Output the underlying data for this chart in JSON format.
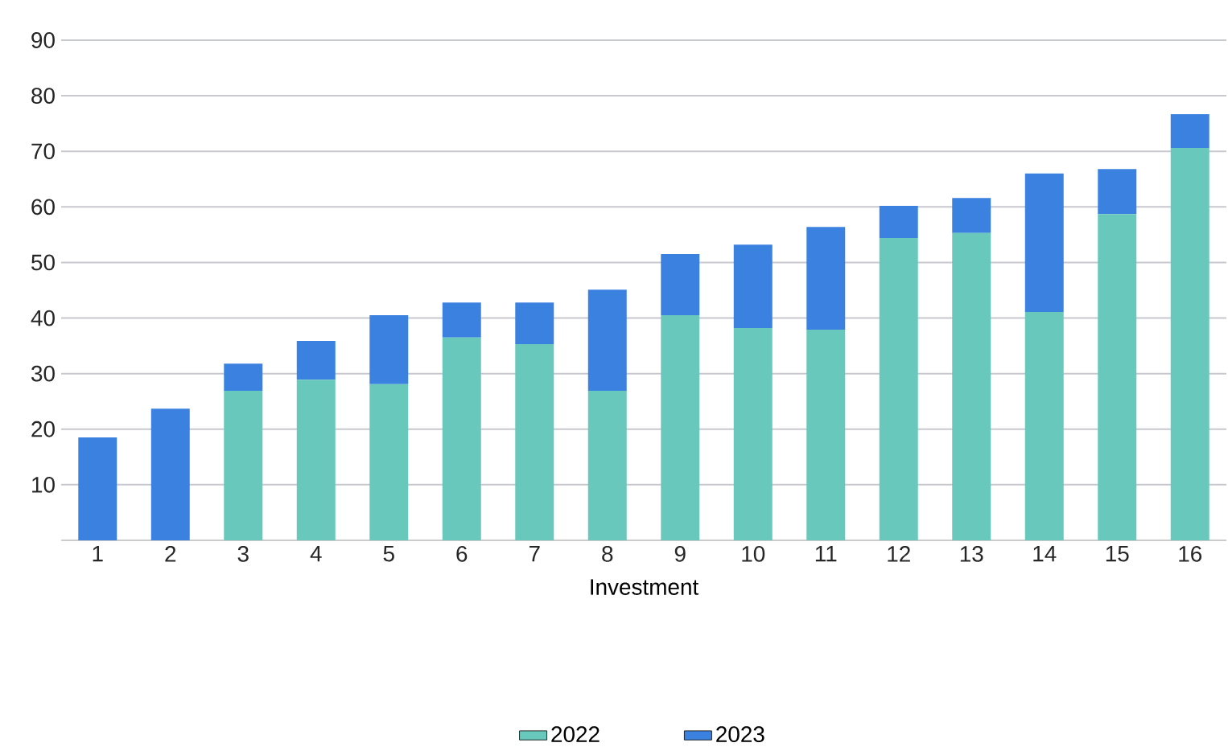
{
  "chart_data": {
    "type": "bar",
    "stacked": true,
    "xlabel": "Investment",
    "categories": [
      "1",
      "2",
      "3",
      "4",
      "5",
      "6",
      "7",
      "8",
      "9",
      "10",
      "11",
      "12",
      "13",
      "14",
      "15",
      "16"
    ],
    "series": [
      {
        "name": "2022",
        "color": "#68c8bb",
        "values": [
          0,
          0,
          26.9,
          28.9,
          28.1,
          36.5,
          35.3,
          26.9,
          40.5,
          38.2,
          37.9,
          54.4,
          55.3,
          41.1,
          58.7,
          70.6
        ]
      },
      {
        "name": "2023",
        "color": "#3b82e0",
        "values": [
          18.5,
          23.7,
          4.9,
          7.0,
          12.4,
          6.3,
          7.5,
          18.2,
          11.0,
          15.0,
          18.5,
          5.8,
          6.3,
          24.9,
          8.1,
          6.1
        ]
      }
    ],
    "ylim": [
      0,
      90
    ],
    "yticks": [
      10,
      20,
      30,
      40,
      50,
      60,
      70,
      80,
      90
    ],
    "grid": "y",
    "legend": "bottom"
  }
}
